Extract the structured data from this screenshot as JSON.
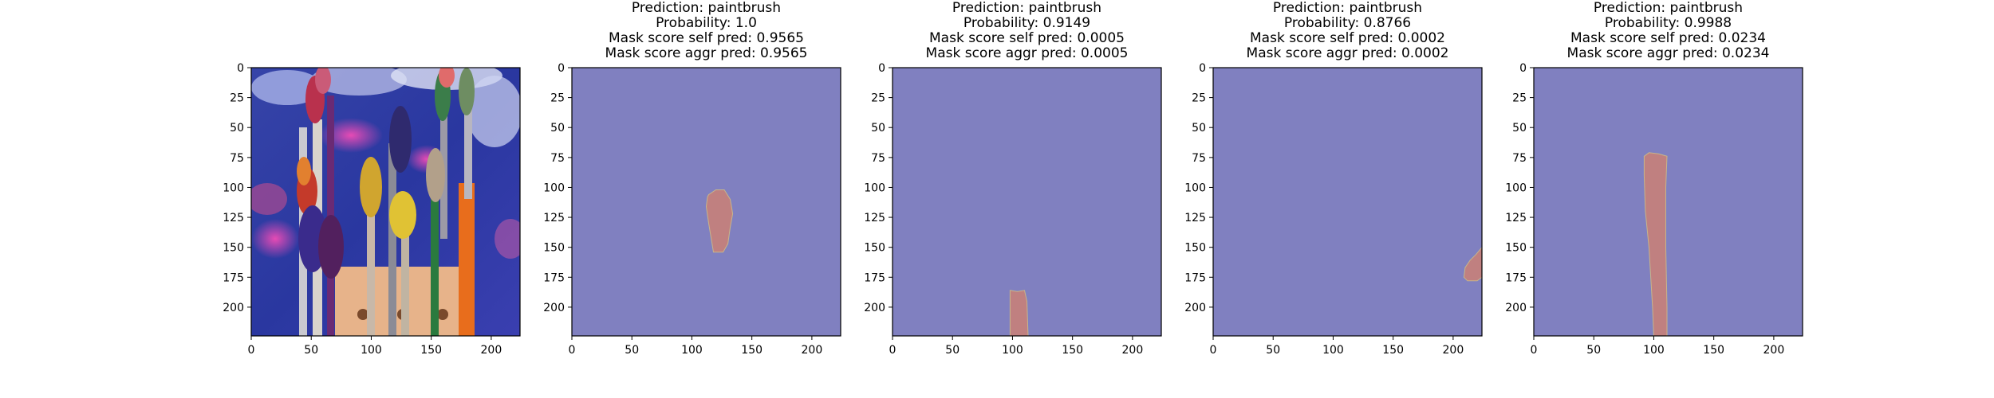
{
  "figure": {
    "background": "#ffffff",
    "mask_background": "#8080c0",
    "mask_foreground": "#c08080"
  },
  "photo_panel": {
    "title": [],
    "image": {
      "subject": "paintbrushes standing in holder with colourful paint on bristles",
      "background": "blue painted surface with magenta and white splashes"
    }
  },
  "chart_data": [
    {
      "type": "heatmap",
      "title": [
        "Prediction: paintbrush",
        "Probability: 1.0",
        "Mask score self pred: 0.9565",
        "Mask score aggr pred: 0.9565"
      ],
      "x_ticks": [
        0,
        50,
        100,
        150,
        200
      ],
      "y_ticks": [
        0,
        25,
        50,
        75,
        100,
        125,
        150,
        175,
        200
      ],
      "xlim": [
        0,
        224
      ],
      "ylim": [
        224,
        0
      ],
      "mask_region": [
        [
          114,
          106
        ],
        [
          120,
          102
        ],
        [
          127,
          102
        ],
        [
          132,
          110
        ],
        [
          134,
          122
        ],
        [
          132,
          133
        ],
        [
          130,
          147
        ],
        [
          126,
          154
        ],
        [
          118,
          154
        ],
        [
          116,
          142
        ],
        [
          114,
          130
        ],
        [
          112,
          116
        ],
        [
          113,
          108
        ]
      ]
    },
    {
      "type": "heatmap",
      "title": [
        "Prediction: paintbrush",
        "Probability: 0.9149",
        "Mask score self pred: 0.0005",
        "Mask score aggr pred: 0.0005"
      ],
      "x_ticks": [
        0,
        50,
        100,
        150,
        200
      ],
      "y_ticks": [
        0,
        25,
        50,
        75,
        100,
        125,
        150,
        175,
        200
      ],
      "xlim": [
        0,
        224
      ],
      "ylim": [
        224,
        0
      ],
      "mask_region": [
        [
          98,
          186
        ],
        [
          104,
          187
        ],
        [
          110,
          186
        ],
        [
          112,
          195
        ],
        [
          113,
          224
        ],
        [
          98,
          224
        ],
        [
          98,
          200
        ]
      ]
    },
    {
      "type": "heatmap",
      "title": [
        "Prediction: paintbrush",
        "Probability: 0.8766",
        "Mask score self pred: 0.0002",
        "Mask score aggr pred: 0.0002"
      ],
      "x_ticks": [
        0,
        50,
        100,
        150,
        200
      ],
      "y_ticks": [
        0,
        25,
        50,
        75,
        100,
        125,
        150,
        175,
        200
      ],
      "xlim": [
        0,
        224
      ],
      "ylim": [
        224,
        0
      ],
      "mask_region": [
        [
          224,
          150
        ],
        [
          224,
          175
        ],
        [
          220,
          178
        ],
        [
          212,
          178
        ],
        [
          209,
          175
        ],
        [
          210,
          167
        ],
        [
          214,
          161
        ],
        [
          219,
          156
        ]
      ]
    },
    {
      "type": "heatmap",
      "title": [
        "Prediction: paintbrush",
        "Probability: 0.9988",
        "Mask score self pred: 0.0234",
        "Mask score aggr pred: 0.0234"
      ],
      "x_ticks": [
        0,
        50,
        100,
        150,
        200
      ],
      "y_ticks": [
        0,
        25,
        50,
        75,
        100,
        125,
        150,
        175,
        200
      ],
      "xlim": [
        0,
        224
      ],
      "ylim": [
        224,
        0
      ],
      "mask_region": [
        [
          92,
          74
        ],
        [
          96,
          71
        ],
        [
          104,
          72
        ],
        [
          111,
          74
        ],
        [
          110,
          100
        ],
        [
          110,
          150
        ],
        [
          111,
          200
        ],
        [
          111,
          224
        ],
        [
          100,
          224
        ],
        [
          99,
          200
        ],
        [
          96,
          150
        ],
        [
          93,
          120
        ],
        [
          92,
          90
        ]
      ]
    }
  ],
  "photo_axes": {
    "x_ticks": [
      0,
      50,
      100,
      150,
      200
    ],
    "y_ticks": [
      0,
      25,
      50,
      75,
      100,
      125,
      150,
      175,
      200
    ],
    "xlim": [
      0,
      224
    ],
    "ylim": [
      224,
      0
    ]
  }
}
